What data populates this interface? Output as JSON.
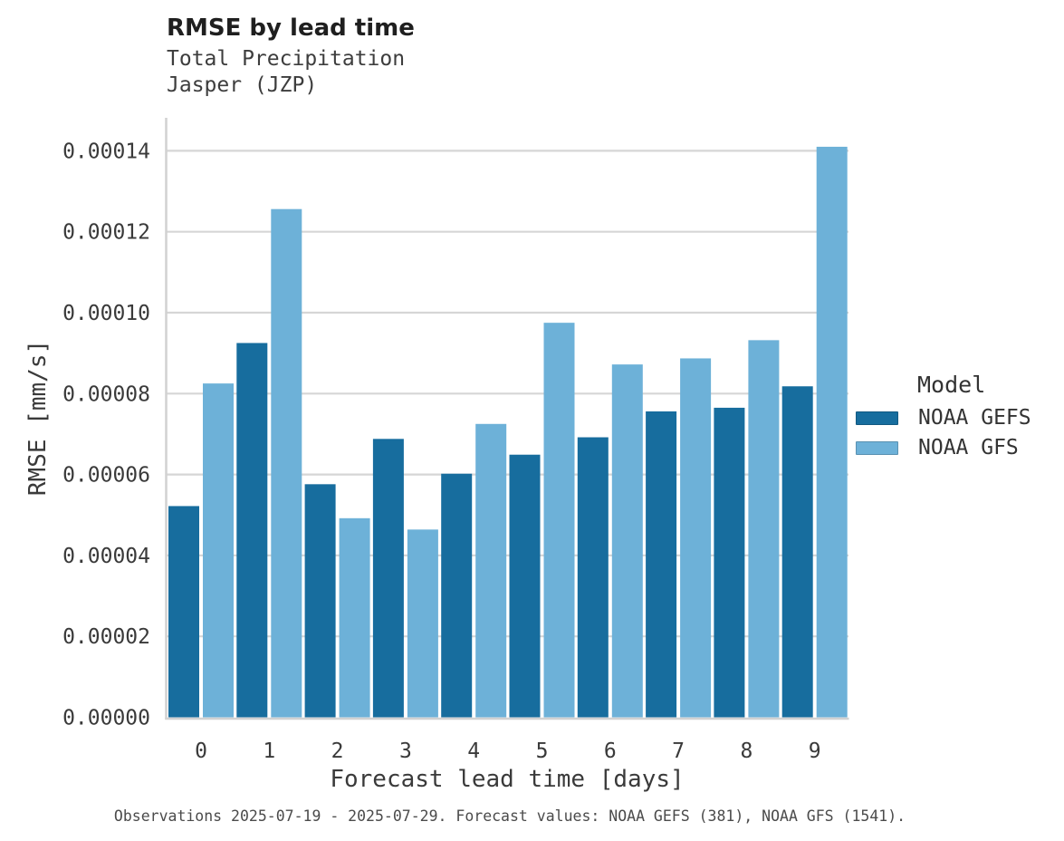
{
  "header": {
    "title": "RMSE by lead time",
    "subtitle_line1": "Total Precipitation",
    "subtitle_line2": "Jasper (JZP)"
  },
  "legend": {
    "title": "Model",
    "items": [
      {
        "label": "NOAA GEFS",
        "color": "#176d9e"
      },
      {
        "label": "NOAA GFS",
        "color": "#6db1d8"
      }
    ]
  },
  "footer": {
    "text": "Observations 2025-07-19 - 2025-07-29. Forecast values: NOAA GEFS (381), NOAA GFS (1541)."
  },
  "colors": {
    "gefs_dark_blue": "#176d9e",
    "gfs_light_blue": "#6db1d8",
    "gridline": "#d6d6d6",
    "axis_spine": "#d2d2d2",
    "tick_text": "#3a3a3a"
  },
  "chart_data": {
    "type": "bar",
    "title": "RMSE by lead time",
    "subtitle": [
      "Total Precipitation",
      "Jasper (JZP)"
    ],
    "xlabel": "Forecast lead time [days]",
    "ylabel": "RMSE [mm/s]",
    "categories": [
      "0",
      "1",
      "2",
      "3",
      "4",
      "5",
      "6",
      "7",
      "8",
      "9"
    ],
    "series": [
      {
        "name": "NOAA GEFS",
        "color": "#176d9e",
        "values": [
          5.22e-05,
          9.25e-05,
          5.76e-05,
          6.88e-05,
          6.02e-05,
          6.49e-05,
          6.92e-05,
          7.56e-05,
          7.65e-05,
          8.18e-05
        ]
      },
      {
        "name": "NOAA GFS",
        "color": "#6db1d8",
        "values": [
          8.25e-05,
          0.0001256,
          4.92e-05,
          4.64e-05,
          7.25e-05,
          9.75e-05,
          8.72e-05,
          8.87e-05,
          9.32e-05,
          0.000141
        ]
      }
    ],
    "ylim": [
      0,
      0.000148
    ],
    "y_ticks": [
      0.0,
      2e-05,
      4e-05,
      6e-05,
      8e-05,
      0.0001,
      0.00012,
      0.00014
    ],
    "y_tick_labels": [
      "0.00000",
      "0.00002",
      "0.00004",
      "0.00006",
      "0.00008",
      "0.00010",
      "0.00012",
      "0.00014"
    ],
    "grid": "horizontal-only",
    "legend_title": "Model",
    "legend_position": "center-right"
  }
}
